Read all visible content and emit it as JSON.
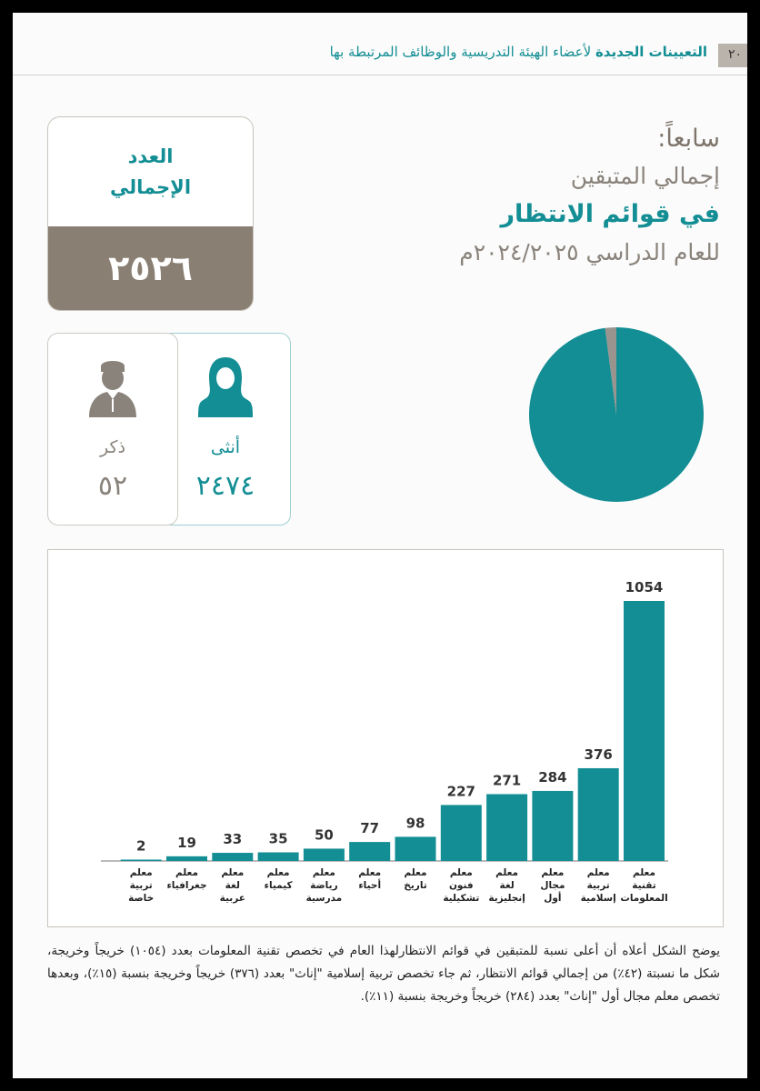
{
  "header": {
    "page_number": "٢٠",
    "title_bold": "التعيينات الجديدة",
    "title_rest": " لأعضاء الهيئة التدريسية والوظائف المرتبطة بها"
  },
  "heading": {
    "line1": "سابعاً:",
    "line2": "إجمالي المتبقين",
    "line3": "في قوائم الانتظار",
    "line4": "للعام الدراسي ٢٠٢٤/٢٠٢٥م"
  },
  "total": {
    "label_line1": "العدد",
    "label_line2": "الإجمالي",
    "value": "٢٥٢٦"
  },
  "gender": {
    "female": {
      "icon": "female-person-icon",
      "label": "أنثى",
      "value": "٢٤٧٤"
    },
    "male": {
      "icon": "male-person-icon",
      "label": "ذكر",
      "value": "٥٢"
    }
  },
  "colors": {
    "teal": "#138e94",
    "brown": "#8a7f73",
    "grey": "#9a948e"
  },
  "pie_data": {
    "type": "pie",
    "slices": [
      {
        "value": 2474,
        "color": "#138e94"
      },
      {
        "value": 52,
        "color": "#9a948e"
      }
    ]
  },
  "chart_data": {
    "type": "bar",
    "categories": [
      [
        "معلم",
        "تقنية",
        "المعلومات"
      ],
      [
        "معلم",
        "تربية",
        "إسلامية"
      ],
      [
        "معلم",
        "مجال",
        "أول"
      ],
      [
        "معلم",
        "لغة",
        "إنجليزية"
      ],
      [
        "معلم",
        "فنون",
        "تشكيلية"
      ],
      [
        "معلم",
        "تاريخ"
      ],
      [
        "معلم",
        "أحياء"
      ],
      [
        "معلم",
        "رياضة",
        "مدرسية"
      ],
      [
        "معلم",
        "كيمياء"
      ],
      [
        "معلم",
        "لغة",
        "عربية"
      ],
      [
        "معلم",
        "جغرافياء"
      ],
      [
        "معلم",
        "تربية",
        "خاصة"
      ]
    ],
    "values": [
      1054,
      376,
      284,
      271,
      227,
      98,
      77,
      50,
      35,
      33,
      19,
      2
    ],
    "value_labels": [
      "1054",
      "376",
      "284",
      "271",
      "227",
      "98",
      "77",
      "50",
      "35",
      "33",
      "19",
      "2"
    ],
    "order": "right-to-left",
    "color": "#138e94",
    "grid": false
  },
  "caption": "يوضح الشكل أعلاه أن أعلى نسبة للمتبقين في قوائم الانتظارلهذا العام في تخصص تقنية المعلومات بعدد (١٠٥٤) خريجاً وخريجة، شكل ما نسبتة (٤٢٪) من إجمالي قوائم الانتظار، ثم جاء تخصص تربية إسلامية \"إناث\" بعدد (٣٧٦) خريجاً وخريجة بنسبة (١٥٪)، وبعدها تخصص معلم مجال أول \"إناث\" بعدد (٢٨٤) خريجاً وخريجة بنسبة (١١٪)."
}
